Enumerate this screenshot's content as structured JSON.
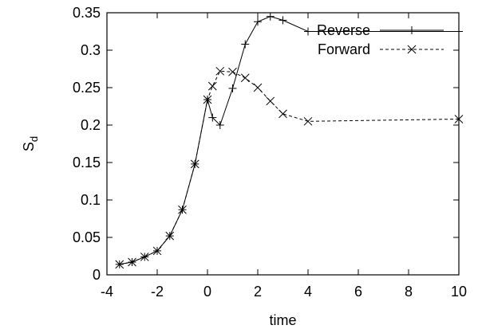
{
  "chart_data": {
    "type": "line",
    "xlabel": "time",
    "ylabel": "S",
    "ylabel_subscript": "d",
    "xlim": [
      -4,
      10
    ],
    "ylim": [
      0,
      0.35
    ],
    "x_ticks": [
      "-4",
      "-2",
      "0",
      "2",
      "4",
      "6",
      "8",
      "10"
    ],
    "y_ticks": [
      "0",
      "0.05",
      "0.1",
      "0.15",
      "0.2",
      "0.25",
      "0.3",
      "0.35"
    ],
    "grid": false,
    "legend_position": "top-right",
    "series": [
      {
        "name": "Reverse",
        "line_style": "solid",
        "marker": "plus",
        "points": [
          [
            -3.5,
            0.014
          ],
          [
            -3,
            0.017
          ],
          [
            -2.5,
            0.024
          ],
          [
            -2,
            0.032
          ],
          [
            -1.5,
            0.052
          ],
          [
            -1,
            0.087
          ],
          [
            -0.5,
            0.148
          ],
          [
            0,
            0.234
          ],
          [
            0.2,
            0.21
          ],
          [
            0.5,
            0.2
          ],
          [
            1,
            0.249
          ],
          [
            1.5,
            0.308
          ],
          [
            2,
            0.338
          ],
          [
            2.5,
            0.345
          ],
          [
            3,
            0.34
          ],
          [
            4,
            0.325
          ],
          [
            10,
            0.325
          ]
        ]
      },
      {
        "name": "Forward",
        "line_style": "dashed",
        "marker": "cross",
        "points": [
          [
            -3.5,
            0.014
          ],
          [
            -3,
            0.017
          ],
          [
            -2.5,
            0.024
          ],
          [
            -2,
            0.032
          ],
          [
            -1.5,
            0.052
          ],
          [
            -1,
            0.087
          ],
          [
            -0.5,
            0.148
          ],
          [
            0,
            0.234
          ],
          [
            0.2,
            0.252
          ],
          [
            0.5,
            0.272
          ],
          [
            1,
            0.271
          ],
          [
            1.5,
            0.263
          ],
          [
            2,
            0.25
          ],
          [
            2.5,
            0.232
          ],
          [
            3,
            0.215
          ],
          [
            4,
            0.205
          ],
          [
            10,
            0.208
          ]
        ]
      }
    ]
  }
}
